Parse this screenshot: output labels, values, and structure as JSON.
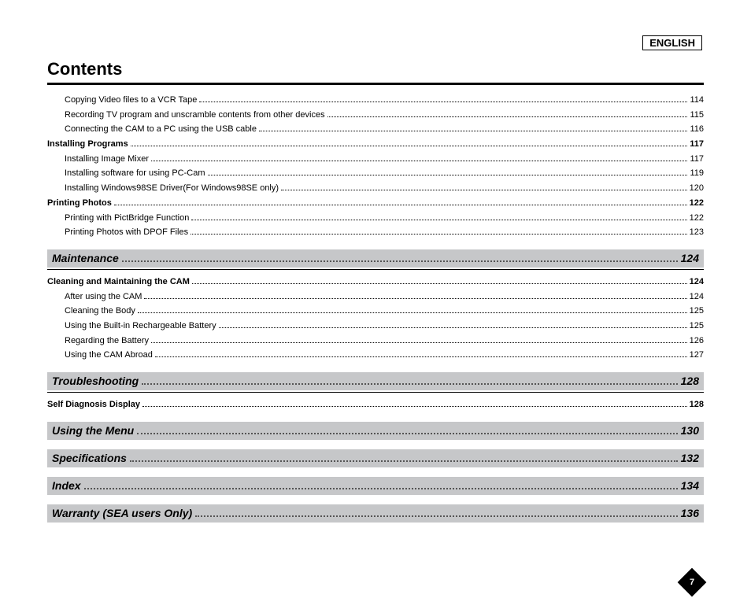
{
  "language_label": "ENGLISH",
  "title": "Contents",
  "page_number": "7",
  "toc": [
    {
      "type": "item",
      "indent": 2,
      "bold": false,
      "label": "Copying Video files to a VCR Tape",
      "page": "114"
    },
    {
      "type": "item",
      "indent": 2,
      "bold": false,
      "label": "Recording TV program and unscramble contents from other devices",
      "page": "115"
    },
    {
      "type": "item",
      "indent": 2,
      "bold": false,
      "label": "Connecting the CAM to a PC using the USB cable",
      "page": "116"
    },
    {
      "type": "item",
      "indent": 1,
      "bold": true,
      "label": "Installing Programs",
      "page": "117"
    },
    {
      "type": "item",
      "indent": 2,
      "bold": false,
      "label": "Installing Image Mixer",
      "page": "117"
    },
    {
      "type": "item",
      "indent": 2,
      "bold": false,
      "label": "Installing software for using PC-Cam",
      "page": "119"
    },
    {
      "type": "item",
      "indent": 2,
      "bold": false,
      "label": "Installing Windows98SE Driver(For Windows98SE only)",
      "page": "120"
    },
    {
      "type": "item",
      "indent": 1,
      "bold": true,
      "label": "Printing Photos",
      "page": "122"
    },
    {
      "type": "item",
      "indent": 2,
      "bold": false,
      "label": "Printing with PictBridge Function",
      "page": "122"
    },
    {
      "type": "item",
      "indent": 2,
      "bold": false,
      "label": "Printing Photos with DPOF Files",
      "page": "123"
    },
    {
      "type": "section",
      "label": "Maintenance",
      "page": "124",
      "rule_after": true
    },
    {
      "type": "item",
      "indent": 1,
      "bold": true,
      "label": "Cleaning and Maintaining the CAM",
      "page": "124"
    },
    {
      "type": "item",
      "indent": 2,
      "bold": false,
      "label": "After using the CAM",
      "page": "124"
    },
    {
      "type": "item",
      "indent": 2,
      "bold": false,
      "label": "Cleaning the Body",
      "page": "125"
    },
    {
      "type": "item",
      "indent": 2,
      "bold": false,
      "label": "Using the Built-in Rechargeable Battery",
      "page": "125"
    },
    {
      "type": "item",
      "indent": 2,
      "bold": false,
      "label": "Regarding the Battery",
      "page": "126"
    },
    {
      "type": "item",
      "indent": 2,
      "bold": false,
      "label": "Using the CAM Abroad",
      "page": "127"
    },
    {
      "type": "section",
      "label": "Troubleshooting",
      "page": "128",
      "rule_after": true
    },
    {
      "type": "item",
      "indent": 1,
      "bold": true,
      "label": "Self Diagnosis Display",
      "page": "128"
    },
    {
      "type": "section",
      "label": "Using the Menu",
      "page": "130",
      "rule_after": false
    },
    {
      "type": "section",
      "label": "Specifications",
      "page": "132",
      "rule_after": false
    },
    {
      "type": "section",
      "label": "Index",
      "page": "134",
      "rule_after": false
    },
    {
      "type": "section",
      "label": "Warranty (SEA users Only)",
      "page": "136",
      "rule_after": false
    }
  ]
}
